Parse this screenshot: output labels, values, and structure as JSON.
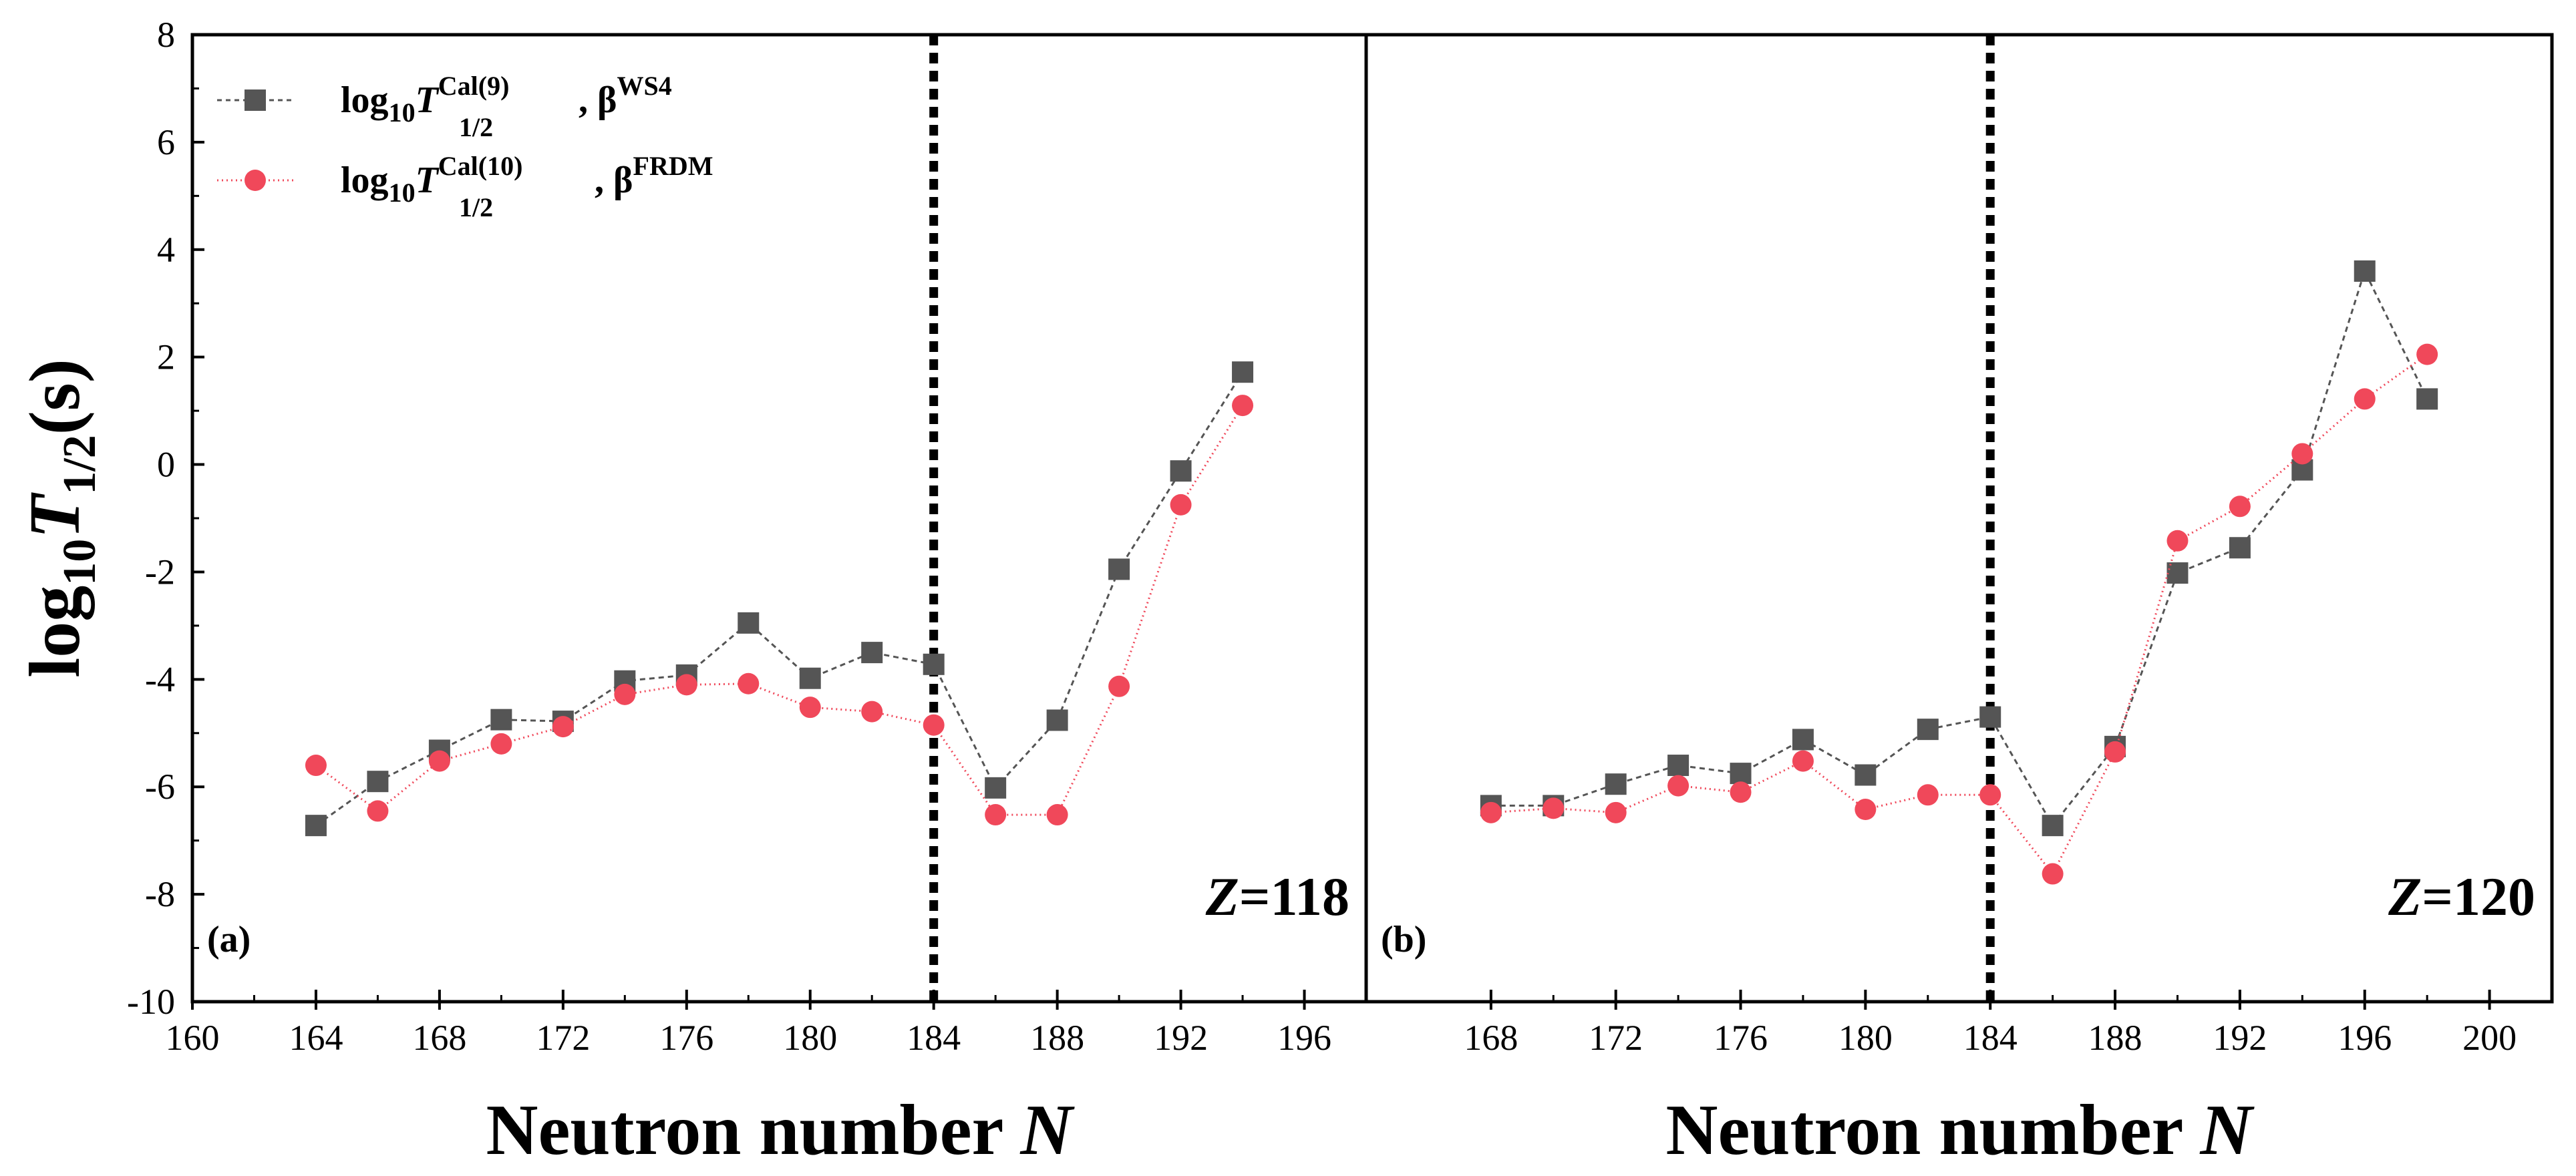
{
  "chart_data": {
    "type": "scatter",
    "ylabel": "log10T1/2(s)",
    "ylim": [
      -10,
      8
    ],
    "yticks": [
      8,
      6,
      4,
      2,
      0,
      -2,
      -4,
      -6,
      -8,
      -10
    ],
    "legend": {
      "placement": "top-left",
      "entries": [
        {
          "series": "ws4",
          "base": "log",
          "base_sub": "10",
          "italic": "T",
          "sup": "Cal(9)",
          "sub": "1/2",
          "tail": ", β",
          "tail_sup": "WS4"
        },
        {
          "series": "frdm",
          "base": "log",
          "base_sub": "10",
          "italic": "T",
          "sup": "Cal(10)",
          "sub": "1/2",
          "tail": ", β",
          "tail_sup": "FRDM"
        }
      ]
    },
    "panels": [
      {
        "tag": "(a)",
        "z_label": {
          "italic": "Z",
          "value": "=118"
        },
        "xlabel": {
          "text": "Neutron number ",
          "italic": "N"
        },
        "xlim": [
          160,
          198
        ],
        "xticks": [
          160,
          164,
          168,
          172,
          176,
          180,
          184,
          188,
          192,
          196
        ],
        "reference_line_x": 184,
        "series": [
          {
            "id": "ws4",
            "marker": "square",
            "color": "#555555",
            "x": [
              164,
              166,
              168,
              170,
              172,
              174,
              176,
              178,
              180,
              182,
              184,
              186,
              188,
              190,
              192,
              194
            ],
            "y": [
              -6.72,
              -5.9,
              -5.32,
              -4.75,
              -4.78,
              -4.03,
              -3.92,
              -2.95,
              -3.98,
              -3.5,
              -3.72,
              -6.02,
              -4.76,
              -1.95,
              -0.12,
              1.72
            ]
          },
          {
            "id": "frdm",
            "marker": "circle",
            "color": "#f0485a",
            "x": [
              164,
              166,
              168,
              170,
              172,
              174,
              176,
              178,
              180,
              182,
              184,
              186,
              188,
              190,
              192,
              194
            ],
            "y": [
              -5.6,
              -6.45,
              -5.52,
              -5.2,
              -4.88,
              -4.28,
              -4.1,
              -4.08,
              -4.52,
              -4.6,
              -4.85,
              -6.52,
              -6.52,
              -4.13,
              -0.75,
              1.1
            ]
          }
        ]
      },
      {
        "tag": "(b)",
        "z_label": {
          "italic": "Z",
          "value": "=120"
        },
        "xlabel": {
          "text": "Neutron number ",
          "italic": "N"
        },
        "xlim": [
          164,
          202
        ],
        "xticks": [
          168,
          172,
          176,
          180,
          184,
          188,
          192,
          196,
          200
        ],
        "reference_line_x": 184,
        "series": [
          {
            "id": "ws4",
            "marker": "square",
            "color": "#555555",
            "x": [
              168,
              170,
              172,
              174,
              176,
              178,
              180,
              182,
              184,
              186,
              188,
              190,
              192,
              194,
              196,
              198
            ],
            "y": [
              -6.35,
              -6.35,
              -5.95,
              -5.6,
              -5.75,
              -5.12,
              -5.78,
              -4.93,
              -4.7,
              -6.72,
              -5.25,
              -2.02,
              -1.55,
              -0.1,
              3.6,
              1.22
            ]
          },
          {
            "id": "frdm",
            "marker": "circle",
            "color": "#f0485a",
            "x": [
              168,
              170,
              172,
              174,
              176,
              178,
              180,
              182,
              184,
              186,
              188,
              190,
              192,
              194,
              196,
              198
            ],
            "y": [
              -6.48,
              -6.4,
              -6.48,
              -5.98,
              -6.1,
              -5.52,
              -6.42,
              -6.15,
              -6.15,
              -7.62,
              -5.35,
              -1.42,
              -0.78,
              0.2,
              1.22,
              2.05
            ]
          }
        ]
      }
    ]
  }
}
